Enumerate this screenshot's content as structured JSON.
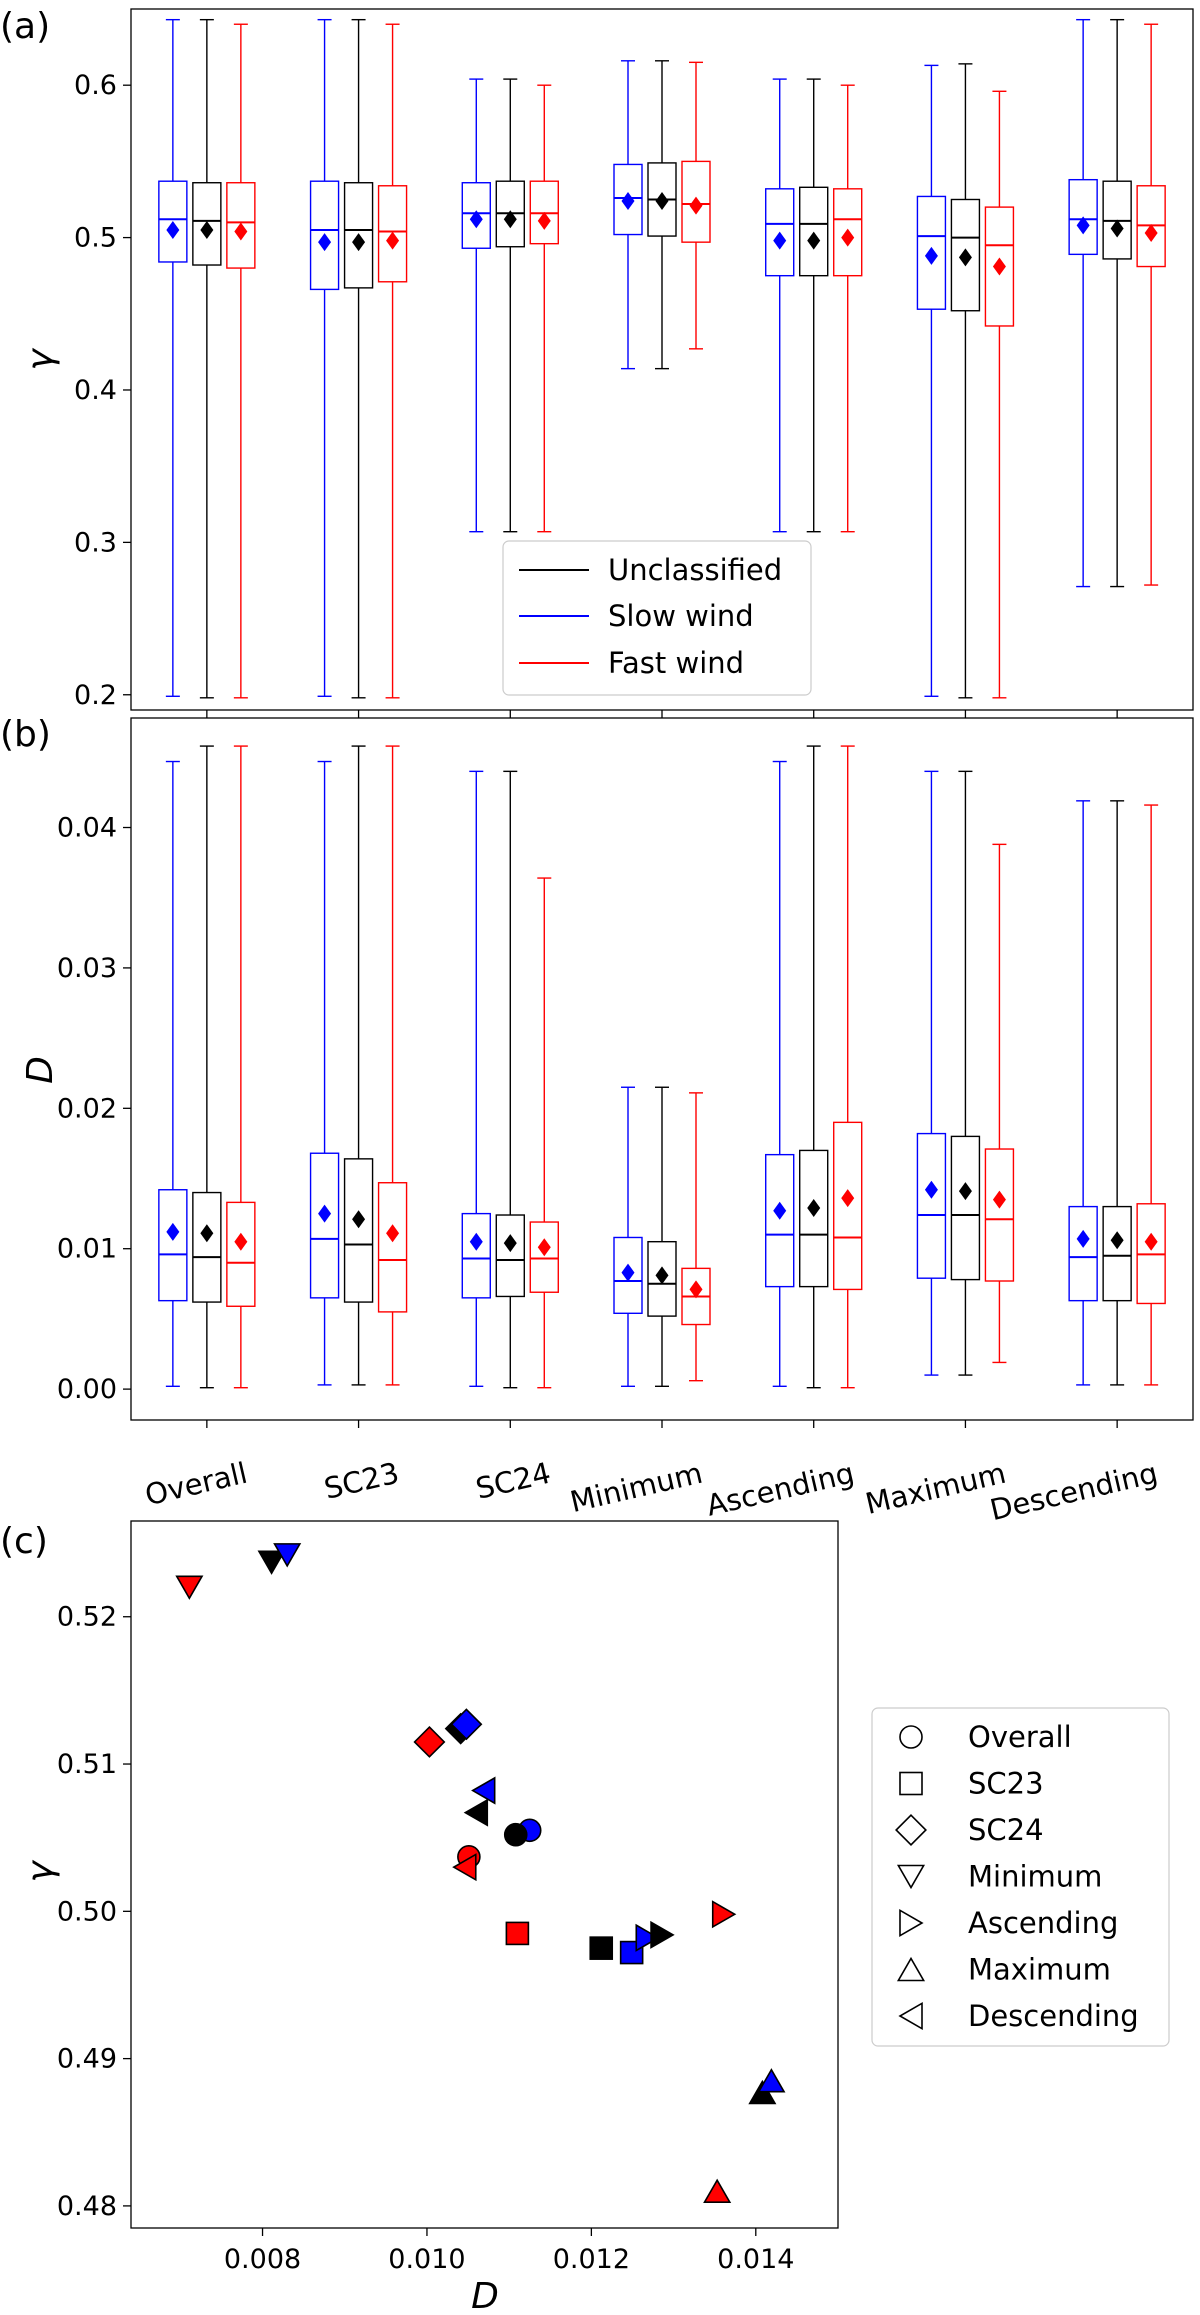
{
  "figure": {
    "panel_labels": [
      "(a)",
      "(b)",
      "(c)"
    ]
  },
  "chart_data": [
    {
      "id": "a",
      "type": "box",
      "ylabel": "γ",
      "ylim": [
        0.19,
        0.65
      ],
      "yticks": [
        0.2,
        0.3,
        0.4,
        0.5,
        0.6
      ],
      "ytick_labels": [
        "0.2",
        "0.3",
        "0.4",
        "0.5",
        "0.6"
      ],
      "categories": [
        "Overall",
        "SC23",
        "SC24",
        "Minimum",
        "Ascending",
        "Maximum",
        "Descending"
      ],
      "legend": {
        "position": "lower center"
      },
      "series": [
        {
          "name": "Slow wind",
          "color": "#0000ff",
          "boxes": [
            {
              "min": 0.199,
              "q1": 0.484,
              "median": 0.512,
              "q3": 0.537,
              "max": 0.643,
              "mean": 0.505
            },
            {
              "min": 0.199,
              "q1": 0.466,
              "median": 0.505,
              "q3": 0.537,
              "max": 0.643,
              "mean": 0.497
            },
            {
              "min": 0.307,
              "q1": 0.493,
              "median": 0.516,
              "q3": 0.536,
              "max": 0.604,
              "mean": 0.512
            },
            {
              "min": 0.414,
              "q1": 0.502,
              "median": 0.526,
              "q3": 0.548,
              "max": 0.616,
              "mean": 0.524
            },
            {
              "min": 0.307,
              "q1": 0.475,
              "median": 0.509,
              "q3": 0.532,
              "max": 0.604,
              "mean": 0.498
            },
            {
              "min": 0.199,
              "q1": 0.453,
              "median": 0.501,
              "q3": 0.527,
              "max": 0.613,
              "mean": 0.488
            },
            {
              "min": 0.271,
              "q1": 0.489,
              "median": 0.512,
              "q3": 0.538,
              "max": 0.643,
              "mean": 0.508
            }
          ]
        },
        {
          "name": "Unclassified",
          "color": "#000000",
          "boxes": [
            {
              "min": 0.198,
              "q1": 0.482,
              "median": 0.511,
              "q3": 0.536,
              "max": 0.643,
              "mean": 0.505
            },
            {
              "min": 0.198,
              "q1": 0.467,
              "median": 0.505,
              "q3": 0.536,
              "max": 0.643,
              "mean": 0.497
            },
            {
              "min": 0.307,
              "q1": 0.494,
              "median": 0.516,
              "q3": 0.537,
              "max": 0.604,
              "mean": 0.512
            },
            {
              "min": 0.414,
              "q1": 0.501,
              "median": 0.525,
              "q3": 0.549,
              "max": 0.616,
              "mean": 0.524
            },
            {
              "min": 0.307,
              "q1": 0.475,
              "median": 0.509,
              "q3": 0.533,
              "max": 0.604,
              "mean": 0.498
            },
            {
              "min": 0.198,
              "q1": 0.452,
              "median": 0.5,
              "q3": 0.525,
              "max": 0.614,
              "mean": 0.487
            },
            {
              "min": 0.271,
              "q1": 0.486,
              "median": 0.511,
              "q3": 0.537,
              "max": 0.643,
              "mean": 0.506
            }
          ]
        },
        {
          "name": "Fast wind",
          "color": "#ff0000",
          "boxes": [
            {
              "min": 0.198,
              "q1": 0.48,
              "median": 0.51,
              "q3": 0.536,
              "max": 0.64,
              "mean": 0.504
            },
            {
              "min": 0.198,
              "q1": 0.471,
              "median": 0.504,
              "q3": 0.534,
              "max": 0.64,
              "mean": 0.498
            },
            {
              "min": 0.307,
              "q1": 0.496,
              "median": 0.516,
              "q3": 0.537,
              "max": 0.6,
              "mean": 0.511
            },
            {
              "min": 0.427,
              "q1": 0.497,
              "median": 0.522,
              "q3": 0.55,
              "max": 0.615,
              "mean": 0.521
            },
            {
              "min": 0.307,
              "q1": 0.475,
              "median": 0.512,
              "q3": 0.532,
              "max": 0.6,
              "mean": 0.5
            },
            {
              "min": 0.198,
              "q1": 0.442,
              "median": 0.495,
              "q3": 0.52,
              "max": 0.596,
              "mean": 0.481
            },
            {
              "min": 0.272,
              "q1": 0.481,
              "median": 0.508,
              "q3": 0.534,
              "max": 0.64,
              "mean": 0.503
            }
          ]
        }
      ]
    },
    {
      "id": "b",
      "type": "box",
      "ylabel": "D",
      "ylim": [
        -0.0022,
        0.0478
      ],
      "yticks": [
        0.0,
        0.01,
        0.02,
        0.03,
        0.04
      ],
      "ytick_labels": [
        "0.00",
        "0.01",
        "0.02",
        "0.03",
        "0.04"
      ],
      "categories": [
        "Overall",
        "SC23",
        "SC24",
        "Minimum",
        "Ascending",
        "Maximum",
        "Descending"
      ],
      "series": [
        {
          "name": "Slow wind",
          "color": "#0000ff",
          "boxes": [
            {
              "min": 0.0002,
              "q1": 0.0063,
              "median": 0.0096,
              "q3": 0.0142,
              "max": 0.0447,
              "mean": 0.0112
            },
            {
              "min": 0.0003,
              "q1": 0.0065,
              "median": 0.0107,
              "q3": 0.0168,
              "max": 0.0447,
              "mean": 0.0125
            },
            {
              "min": 0.0002,
              "q1": 0.0065,
              "median": 0.0093,
              "q3": 0.0125,
              "max": 0.044,
              "mean": 0.0105
            },
            {
              "min": 0.0002,
              "q1": 0.0054,
              "median": 0.0077,
              "q3": 0.0108,
              "max": 0.0215,
              "mean": 0.0083
            },
            {
              "min": 0.0002,
              "q1": 0.0073,
              "median": 0.011,
              "q3": 0.0167,
              "max": 0.0447,
              "mean": 0.0127
            },
            {
              "min": 0.001,
              "q1": 0.0079,
              "median": 0.0124,
              "q3": 0.0182,
              "max": 0.044,
              "mean": 0.0142
            },
            {
              "min": 0.0003,
              "q1": 0.0063,
              "median": 0.0094,
              "q3": 0.013,
              "max": 0.0419,
              "mean": 0.0107
            }
          ]
        },
        {
          "name": "Unclassified",
          "color": "#000000",
          "boxes": [
            {
              "min": 0.0001,
              "q1": 0.0062,
              "median": 0.0094,
              "q3": 0.014,
              "max": 0.0458,
              "mean": 0.0111
            },
            {
              "min": 0.0003,
              "q1": 0.0062,
              "median": 0.0103,
              "q3": 0.0164,
              "max": 0.0458,
              "mean": 0.0121
            },
            {
              "min": 0.0001,
              "q1": 0.0066,
              "median": 0.0092,
              "q3": 0.0124,
              "max": 0.044,
              "mean": 0.0104
            },
            {
              "min": 0.0002,
              "q1": 0.0052,
              "median": 0.0075,
              "q3": 0.0105,
              "max": 0.0215,
              "mean": 0.0081
            },
            {
              "min": 0.0001,
              "q1": 0.0073,
              "median": 0.011,
              "q3": 0.017,
              "max": 0.0458,
              "mean": 0.0129
            },
            {
              "min": 0.001,
              "q1": 0.0078,
              "median": 0.0124,
              "q3": 0.018,
              "max": 0.044,
              "mean": 0.0141
            },
            {
              "min": 0.0003,
              "q1": 0.0063,
              "median": 0.0095,
              "q3": 0.013,
              "max": 0.0419,
              "mean": 0.0106
            }
          ]
        },
        {
          "name": "Fast wind",
          "color": "#ff0000",
          "boxes": [
            {
              "min": 0.0001,
              "q1": 0.0059,
              "median": 0.009,
              "q3": 0.0133,
              "max": 0.0458,
              "mean": 0.0105
            },
            {
              "min": 0.0003,
              "q1": 0.0055,
              "median": 0.0092,
              "q3": 0.0147,
              "max": 0.0458,
              "mean": 0.0111
            },
            {
              "min": 0.0001,
              "q1": 0.0069,
              "median": 0.0093,
              "q3": 0.0119,
              "max": 0.0364,
              "mean": 0.0101
            },
            {
              "min": 0.0006,
              "q1": 0.0046,
              "median": 0.0066,
              "q3": 0.0086,
              "max": 0.0211,
              "mean": 0.0071
            },
            {
              "min": 0.0001,
              "q1": 0.0071,
              "median": 0.0108,
              "q3": 0.019,
              "max": 0.0458,
              "mean": 0.0136
            },
            {
              "min": 0.0019,
              "q1": 0.0077,
              "median": 0.0121,
              "q3": 0.0171,
              "max": 0.0388,
              "mean": 0.0135
            },
            {
              "min": 0.0003,
              "q1": 0.0061,
              "median": 0.0096,
              "q3": 0.0132,
              "max": 0.0416,
              "mean": 0.0105
            }
          ]
        }
      ]
    },
    {
      "id": "c",
      "type": "scatter",
      "xlabel": "D",
      "ylabel": "γ",
      "xlim": [
        0.0064,
        0.015
      ],
      "ylim": [
        0.4785,
        0.5265
      ],
      "xticks": [
        0.008,
        0.01,
        0.012,
        0.014
      ],
      "xtick_labels": [
        "0.008",
        "0.010",
        "0.012",
        "0.014"
      ],
      "yticks": [
        0.48,
        0.49,
        0.5,
        0.51,
        0.52
      ],
      "ytick_labels": [
        "0.48",
        "0.49",
        "0.50",
        "0.51",
        "0.52"
      ],
      "legend": {
        "position": "center right",
        "entries": [
          {
            "label": "Overall",
            "marker": "circle"
          },
          {
            "label": "SC23",
            "marker": "square"
          },
          {
            "label": "SC24",
            "marker": "diamond"
          },
          {
            "label": "Minimum",
            "marker": "triangle-down"
          },
          {
            "label": "Ascending",
            "marker": "triangle-right"
          },
          {
            "label": "Maximum",
            "marker": "triangle-up"
          },
          {
            "label": "Descending",
            "marker": "triangle-left"
          }
        ]
      },
      "points": [
        {
          "group": "Overall",
          "color": "#0000ff",
          "marker": "circle",
          "x": 0.01125,
          "y": 0.5055
        },
        {
          "group": "Overall",
          "color": "#000000",
          "marker": "circle",
          "x": 0.01108,
          "y": 0.5052
        },
        {
          "group": "Overall",
          "color": "#ff0000",
          "marker": "circle",
          "x": 0.01051,
          "y": 0.5037
        },
        {
          "group": "SC23",
          "color": "#ff0000",
          "marker": "square",
          "x": 0.0111,
          "y": 0.4985
        },
        {
          "group": "SC23",
          "color": "#000000",
          "marker": "square",
          "x": 0.01212,
          "y": 0.4975
        },
        {
          "group": "SC23",
          "color": "#0000ff",
          "marker": "square",
          "x": 0.01249,
          "y": 0.4972
        },
        {
          "group": "SC24",
          "color": "#000000",
          "marker": "diamond",
          "x": 0.01041,
          "y": 0.5124
        },
        {
          "group": "SC24",
          "color": "#0000ff",
          "marker": "diamond",
          "x": 0.01048,
          "y": 0.5127
        },
        {
          "group": "SC24",
          "color": "#ff0000",
          "marker": "diamond",
          "x": 0.01003,
          "y": 0.5115
        },
        {
          "group": "Minimum",
          "color": "#ff0000",
          "marker": "triangle-down",
          "x": 0.00711,
          "y": 0.522
        },
        {
          "group": "Minimum",
          "color": "#000000",
          "marker": "triangle-down",
          "x": 0.00811,
          "y": 0.5237
        },
        {
          "group": "Minimum",
          "color": "#0000ff",
          "marker": "triangle-down",
          "x": 0.0083,
          "y": 0.5242
        },
        {
          "group": "Ascending",
          "color": "#0000ff",
          "marker": "triangle-right",
          "x": 0.01268,
          "y": 0.4982
        },
        {
          "group": "Ascending",
          "color": "#000000",
          "marker": "triangle-right",
          "x": 0.01286,
          "y": 0.4984
        },
        {
          "group": "Ascending",
          "color": "#ff0000",
          "marker": "triangle-right",
          "x": 0.01361,
          "y": 0.4998
        },
        {
          "group": "Maximum",
          "color": "#000000",
          "marker": "triangle-up",
          "x": 0.01408,
          "y": 0.4877
        },
        {
          "group": "Maximum",
          "color": "#0000ff",
          "marker": "triangle-up",
          "x": 0.01419,
          "y": 0.4885
        },
        {
          "group": "Maximum",
          "color": "#ff0000",
          "marker": "triangle-up",
          "x": 0.01353,
          "y": 0.481
        },
        {
          "group": "Descending",
          "color": "#000000",
          "marker": "triangle-left",
          "x": 0.0106,
          "y": 0.5067
        },
        {
          "group": "Descending",
          "color": "#0000ff",
          "marker": "triangle-left",
          "x": 0.01069,
          "y": 0.5082
        },
        {
          "group": "Descending",
          "color": "#ff0000",
          "marker": "triangle-left",
          "x": 0.01046,
          "y": 0.503
        }
      ]
    }
  ]
}
